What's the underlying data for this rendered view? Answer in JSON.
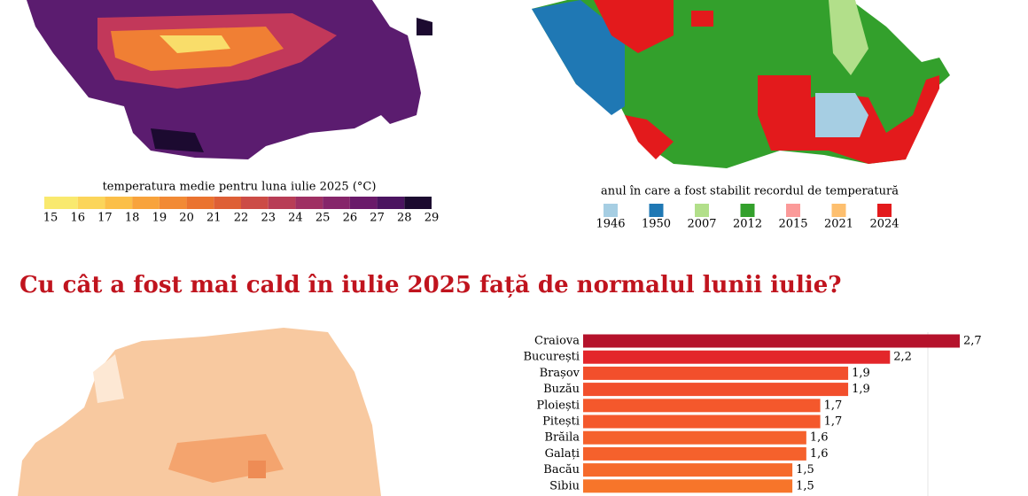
{
  "temperature_map": {
    "legend_title": "temperatura medie pentru luna iulie 2025 (°C)",
    "ticks": [
      15,
      16,
      17,
      18,
      19,
      20,
      21,
      22,
      23,
      24,
      25,
      26,
      27,
      28,
      29
    ],
    "colors": [
      "#f9e96e",
      "#fbd55a",
      "#fbbf48",
      "#f8a33c",
      "#f28a35",
      "#ea7330",
      "#de5f36",
      "#cc4c46",
      "#b83d56",
      "#9f3063",
      "#86256a",
      "#6a1a6a",
      "#4b1460",
      "#1c0a30"
    ]
  },
  "record_map": {
    "legend_title": "anul în care a fost stabilit recordul de temperatură",
    "items": [
      {
        "label": "1946",
        "color": "#a6cee3"
      },
      {
        "label": "1950",
        "color": "#1f78b4"
      },
      {
        "label": "2007",
        "color": "#b2df8a"
      },
      {
        "label": "2012",
        "color": "#33a02c"
      },
      {
        "label": "2015",
        "color": "#fb9a99"
      },
      {
        "label": "2021",
        "color": "#fdbf6f"
      },
      {
        "label": "2024",
        "color": "#e31a1c"
      }
    ]
  },
  "heading": "Cu cât a fost mai cald în iulie 2025 față de normalul lunii iulie?",
  "chart_data": {
    "type": "bar",
    "orientation": "horizontal",
    "categories": [
      "Craiova",
      "București",
      "Brașov",
      "Buzău",
      "Ploiești",
      "Pitești",
      "Brăila",
      "Galați",
      "Bacău",
      "Sibiu"
    ],
    "values": [
      2.7,
      2.2,
      1.9,
      1.9,
      1.7,
      1.7,
      1.6,
      1.6,
      1.5,
      1.5
    ],
    "value_labels": [
      "2,7",
      "2,2",
      "1,9",
      "1,9",
      "1,7",
      "1,7",
      "1,6",
      "1,6",
      "1,5",
      "1,5"
    ],
    "colors": [
      "#b5122b",
      "#e3262a",
      "#f24f2c",
      "#f24f2c",
      "#f4582c",
      "#f4582c",
      "#f5612c",
      "#f5612c",
      "#f66a2b",
      "#f7752a"
    ]
  }
}
